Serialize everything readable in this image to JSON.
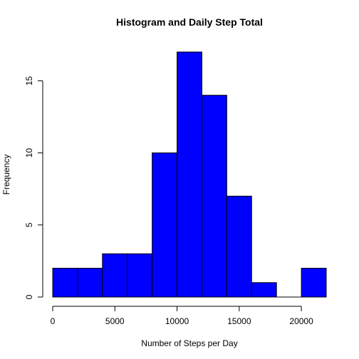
{
  "chart_data": {
    "type": "bar",
    "title": "Histogram and Daily Step Total",
    "xlabel": "Number of Steps per Day",
    "ylabel": "Frequency",
    "bin_edges": [
      0,
      2000,
      4000,
      6000,
      8000,
      10000,
      12000,
      14000,
      16000,
      18000,
      20000,
      22000
    ],
    "values": [
      2,
      2,
      3,
      3,
      10,
      17,
      14,
      7,
      1,
      0,
      2
    ],
    "xlim": [
      0,
      22000
    ],
    "ylim": [
      0,
      17
    ],
    "x_ticks": [
      0,
      5000,
      10000,
      15000,
      20000
    ],
    "x_tick_labels": [
      "0",
      "5000",
      "10000",
      "15000",
      "20000"
    ],
    "y_ticks": [
      0,
      5,
      10,
      15
    ],
    "y_tick_labels": [
      "0",
      "5",
      "10",
      "15"
    ],
    "bar_color": "#0000ff",
    "grid": false,
    "legend": "none"
  }
}
